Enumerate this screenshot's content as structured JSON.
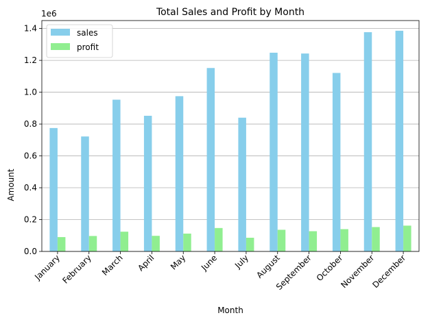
{
  "chart_data": {
    "type": "bar",
    "title": "Total Sales and Profit by Month",
    "xlabel": "Month",
    "ylabel": "Amount",
    "y_multiplier_label": "1e6",
    "categories": [
      "January",
      "February",
      "March",
      "April",
      "May",
      "June",
      "July",
      "August",
      "September",
      "October",
      "November",
      "December"
    ],
    "series": [
      {
        "name": "sales",
        "color": "#87CEEB",
        "values": [
          775000,
          722000,
          953000,
          852000,
          975000,
          1152000,
          840000,
          1248000,
          1243000,
          1121000,
          1377000,
          1386000
        ]
      },
      {
        "name": "profit",
        "color": "#90EE90",
        "values": [
          90000,
          97000,
          124000,
          98000,
          112000,
          147000,
          86000,
          136000,
          127000,
          140000,
          153000,
          162000
        ]
      }
    ],
    "ylim": [
      0,
      1450000
    ],
    "yticks": [
      0,
      200000,
      400000,
      600000,
      800000,
      1000000,
      1200000,
      1400000
    ],
    "ytick_labels": [
      "0.0",
      "0.2",
      "0.4",
      "0.6",
      "0.8",
      "1.0",
      "1.2",
      "1.4"
    ],
    "grid": "y",
    "legend_position": "top-left"
  }
}
